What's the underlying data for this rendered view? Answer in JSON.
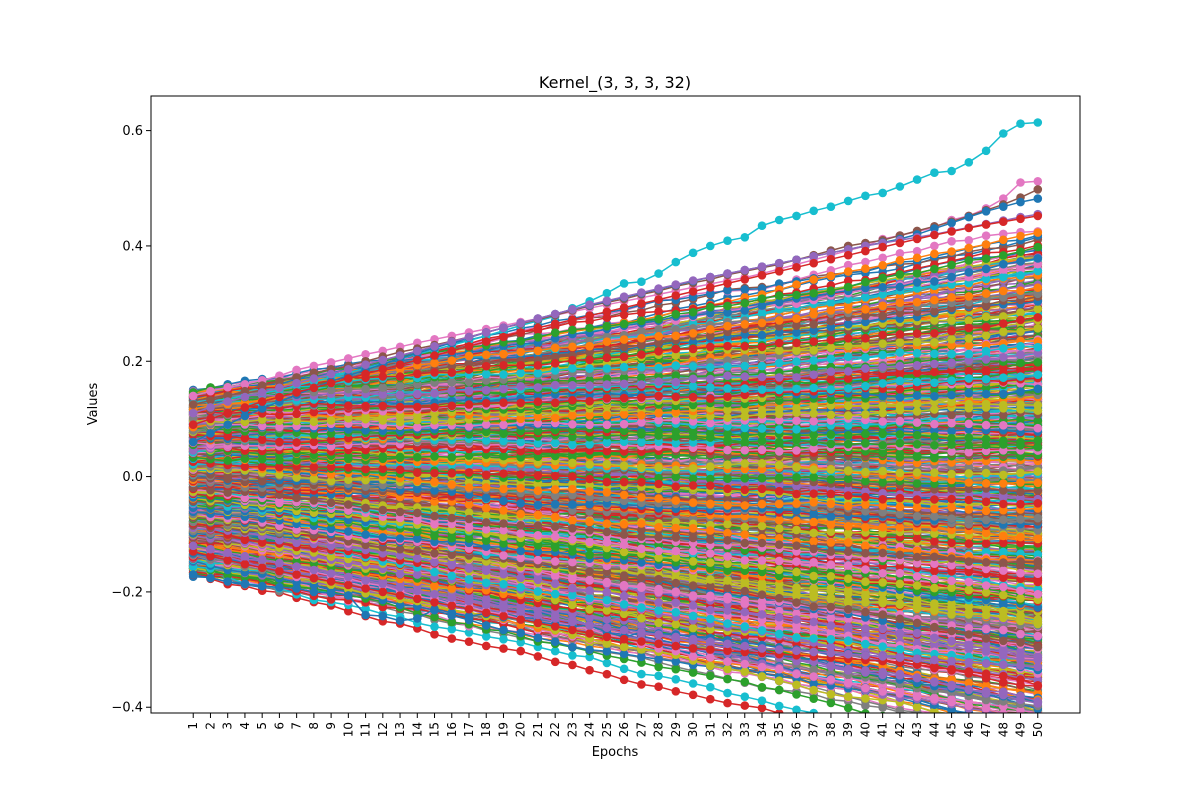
{
  "chart_data": {
    "type": "line",
    "title": "Kernel_(3, 3, 3, 32)",
    "xlabel": "Epochs",
    "ylabel": "Values",
    "x": [
      1,
      2,
      3,
      4,
      5,
      6,
      7,
      8,
      9,
      10,
      11,
      12,
      13,
      14,
      15,
      16,
      17,
      18,
      19,
      20,
      21,
      22,
      23,
      24,
      25,
      26,
      27,
      28,
      29,
      30,
      31,
      32,
      33,
      34,
      35,
      36,
      37,
      38,
      39,
      40,
      41,
      42,
      43,
      44,
      45,
      46,
      47,
      48,
      49,
      50
    ],
    "ylim": [
      -0.41,
      0.66
    ],
    "yticks": [
      -0.4,
      -0.2,
      0.0,
      0.2,
      0.4,
      0.6
    ],
    "ytick_labels": [
      "−0.4",
      "−0.2",
      "0.0",
      "0.2",
      "0.4",
      "0.6"
    ],
    "grid": false,
    "legend": "none",
    "marker": "circle",
    "series_count": 864,
    "palette": [
      "#1f77b4",
      "#ff7f0e",
      "#2ca02c",
      "#d62728",
      "#9467bd",
      "#8c564b",
      "#e377c2",
      "#7f7f7f",
      "#bcbd22",
      "#17becf"
    ],
    "series_summary": "864 kernel weight trajectories; initial values between about -0.17 and 0.15 at epoch 1, diverging roughly linearly to about -0.36 to 0.61 at epoch 50",
    "highlighted_series": [
      {
        "color": "#17becf",
        "values": [
          0.126,
          0.13,
          0.135,
          0.14,
          0.145,
          0.15,
          0.158,
          0.165,
          0.172,
          0.18,
          0.188,
          0.196,
          0.204,
          0.212,
          0.22,
          0.228,
          0.236,
          0.244,
          0.253,
          0.262,
          0.27,
          0.278,
          0.292,
          0.304,
          0.318,
          0.335,
          0.338,
          0.352,
          0.372,
          0.388,
          0.4,
          0.409,
          0.415,
          0.435,
          0.445,
          0.452,
          0.461,
          0.468,
          0.478,
          0.487,
          0.492,
          0.503,
          0.515,
          0.527,
          0.53,
          0.545,
          0.565,
          0.595,
          0.612,
          0.614
        ]
      },
      {
        "color": "#e377c2",
        "values": [
          0.14,
          0.148,
          0.155,
          0.16,
          0.167,
          0.175,
          0.185,
          0.192,
          0.198,
          0.205,
          0.212,
          0.218,
          0.225,
          0.232,
          0.238,
          0.244,
          0.25,
          0.256,
          0.262,
          0.268,
          0.274,
          0.28,
          0.286,
          0.292,
          0.298,
          0.304,
          0.31,
          0.316,
          0.322,
          0.328,
          0.334,
          0.34,
          0.345,
          0.352,
          0.36,
          0.368,
          0.376,
          0.384,
          0.392,
          0.4,
          0.412,
          0.418,
          0.425,
          0.432,
          0.445,
          0.452,
          0.465,
          0.482,
          0.51,
          0.512
        ]
      },
      {
        "color": "#8c564b",
        "values": [
          0.125,
          0.132,
          0.14,
          0.148,
          0.158,
          0.165,
          0.172,
          0.18,
          0.186,
          0.192,
          0.2,
          0.208,
          0.216,
          0.222,
          0.228,
          0.235,
          0.242,
          0.25,
          0.258,
          0.265,
          0.272,
          0.28,
          0.288,
          0.296,
          0.302,
          0.308,
          0.316,
          0.322,
          0.33,
          0.336,
          0.342,
          0.35,
          0.356,
          0.362,
          0.368,
          0.376,
          0.384,
          0.392,
          0.4,
          0.405,
          0.41,
          0.418,
          0.426,
          0.434,
          0.442,
          0.452,
          0.462,
          0.472,
          0.484,
          0.498
        ]
      },
      {
        "color": "#1f77b4",
        "values": [
          0.06,
          0.075,
          0.09,
          0.105,
          0.118,
          0.13,
          0.142,
          0.154,
          0.165,
          0.175,
          0.185,
          0.195,
          0.205,
          0.214,
          0.223,
          0.232,
          0.241,
          0.25,
          0.258,
          0.266,
          0.274,
          0.282,
          0.29,
          0.297,
          0.304,
          0.311,
          0.318,
          0.325,
          0.332,
          0.339,
          0.346,
          0.352,
          0.358,
          0.364,
          0.37,
          0.376,
          0.382,
          0.388,
          0.394,
          0.4,
          0.406,
          0.412,
          0.42,
          0.43,
          0.44,
          0.45,
          0.46,
          0.468,
          0.476,
          0.482
        ]
      },
      {
        "color": "#9467bd",
        "values": [
          0.11,
          0.12,
          0.13,
          0.138,
          0.146,
          0.154,
          0.162,
          0.17,
          0.178,
          0.186,
          0.194,
          0.202,
          0.21,
          0.218,
          0.226,
          0.234,
          0.242,
          0.25,
          0.258,
          0.266,
          0.274,
          0.282,
          0.29,
          0.298,
          0.305,
          0.312,
          0.319,
          0.326,
          0.333,
          0.34,
          0.346,
          0.352,
          0.358,
          0.364,
          0.37,
          0.376,
          0.382,
          0.388,
          0.394,
          0.4,
          0.405,
          0.41,
          0.415,
          0.42,
          0.426,
          0.432,
          0.438,
          0.444,
          0.45,
          0.455
        ]
      },
      {
        "color": "#d62728",
        "values": [
          0.09,
          0.1,
          0.11,
          0.12,
          0.13,
          0.138,
          0.146,
          0.154,
          0.162,
          0.17,
          0.178,
          0.186,
          0.194,
          0.202,
          0.21,
          0.218,
          0.226,
          0.234,
          0.242,
          0.25,
          0.258,
          0.265,
          0.272,
          0.279,
          0.286,
          0.293,
          0.3,
          0.307,
          0.314,
          0.321,
          0.328,
          0.335,
          0.342,
          0.349,
          0.356,
          0.363,
          0.37,
          0.377,
          0.384,
          0.391,
          0.398,
          0.405,
          0.412,
          0.419,
          0.425,
          0.431,
          0.437,
          0.442,
          0.447,
          0.452
        ]
      },
      {
        "color": "#1f77b4",
        "values": [
          -0.17,
          -0.176,
          -0.182,
          -0.186,
          -0.19,
          -0.192,
          -0.194,
          -0.2,
          -0.202,
          -0.206,
          -0.24,
          -0.242,
          -0.25,
          -0.246,
          -0.23,
          -0.236,
          -0.242,
          -0.238,
          -0.244,
          -0.248,
          -0.252,
          -0.256,
          -0.26,
          -0.258,
          -0.27,
          -0.278,
          -0.27,
          -0.272,
          -0.274,
          -0.278,
          -0.28,
          -0.284,
          -0.288,
          -0.292,
          -0.296,
          -0.3,
          -0.304,
          -0.308,
          -0.306,
          -0.31,
          -0.312,
          -0.314,
          -0.316,
          -0.318,
          -0.32,
          -0.322,
          -0.324,
          -0.326,
          -0.33,
          -0.335
        ]
      },
      {
        "color": "#d62728",
        "values": [
          -0.13,
          -0.138,
          -0.145,
          -0.152,
          -0.158,
          -0.164,
          -0.17,
          -0.176,
          -0.182,
          -0.188,
          -0.194,
          -0.2,
          -0.206,
          -0.212,
          -0.218,
          -0.224,
          -0.23,
          -0.236,
          -0.242,
          -0.248,
          -0.254,
          -0.26,
          -0.266,
          -0.272,
          -0.278,
          -0.282,
          -0.286,
          -0.29,
          -0.294,
          -0.298,
          -0.3,
          -0.302,
          -0.304,
          -0.306,
          -0.308,
          -0.31,
          -0.312,
          -0.314,
          -0.316,
          -0.318,
          -0.32,
          -0.322,
          -0.326,
          -0.33,
          -0.334,
          -0.338,
          -0.342,
          -0.346,
          -0.352,
          -0.362
        ]
      },
      {
        "color": "#9467bd",
        "values": [
          -0.12,
          -0.126,
          -0.132,
          -0.138,
          -0.144,
          -0.15,
          -0.156,
          -0.162,
          -0.168,
          -0.174,
          -0.18,
          -0.186,
          -0.192,
          -0.198,
          -0.204,
          -0.21,
          -0.216,
          -0.222,
          -0.228,
          -0.234,
          -0.24,
          -0.246,
          -0.252,
          -0.258,
          -0.262,
          -0.266,
          -0.27,
          -0.274,
          -0.278,
          -0.282,
          -0.286,
          -0.29,
          -0.294,
          -0.298,
          -0.3,
          -0.302,
          -0.304,
          -0.306,
          -0.308,
          -0.31,
          -0.312,
          -0.314,
          -0.316,
          -0.318,
          -0.32,
          -0.322,
          -0.324,
          -0.326,
          -0.328,
          -0.33
        ]
      }
    ]
  }
}
